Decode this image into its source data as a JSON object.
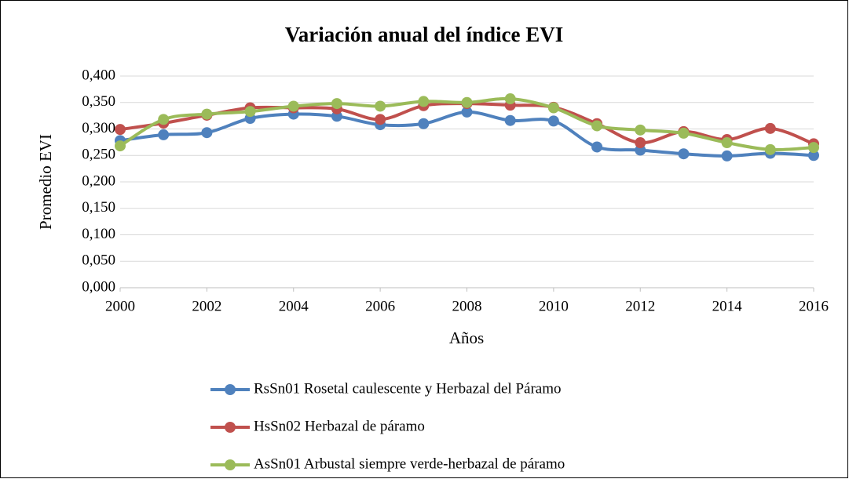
{
  "chart_data": {
    "type": "line",
    "title": "Variación anual del índice EVI",
    "x_label": "Años",
    "y_label": "Promedio EVI",
    "x": [
      2000,
      2001,
      2002,
      2003,
      2004,
      2005,
      2006,
      2007,
      2008,
      2009,
      2010,
      2011,
      2012,
      2013,
      2014,
      2015,
      2016
    ],
    "xlim": [
      2000,
      2016
    ],
    "xticks": [
      2000,
      2002,
      2004,
      2006,
      2008,
      2010,
      2012,
      2014,
      2016
    ],
    "ylim": [
      0,
      0.4
    ],
    "yticks": [
      {
        "value": 0,
        "label": "0,000"
      },
      {
        "value": 0.05,
        "label": "0,050"
      },
      {
        "value": 0.1,
        "label": "0,100"
      },
      {
        "value": 0.15,
        "label": "0,150"
      },
      {
        "value": 0.2,
        "label": "0,200"
      },
      {
        "value": 0.25,
        "label": "0,250"
      },
      {
        "value": 0.3,
        "label": "0,300"
      },
      {
        "value": 0.35,
        "label": "0,350"
      },
      {
        "value": 0.4,
        "label": "0,400"
      }
    ],
    "grid": true,
    "smooth": true,
    "legend": "bottom",
    "series": [
      {
        "name": "RsSn01 Rosetal caulescente y Herbazal del Páramo",
        "color": "#4f81bd",
        "values": [
          0.278,
          0.289,
          0.293,
          0.32,
          0.328,
          0.324,
          0.308,
          0.31,
          0.332,
          0.316,
          0.315,
          0.266,
          0.26,
          0.253,
          0.249,
          0.254,
          0.25
        ]
      },
      {
        "name": "HsSn02 Herbazal de páramo",
        "color": "#c0504d",
        "values": [
          0.299,
          0.311,
          0.326,
          0.34,
          0.34,
          0.338,
          0.318,
          0.344,
          0.348,
          0.345,
          0.341,
          0.31,
          0.274,
          0.295,
          0.28,
          0.301,
          0.272
        ]
      },
      {
        "name": "AsSn01 Arbustal siempre verde-herbazal de páramo",
        "color": "#9bbb59",
        "values": [
          0.268,
          0.318,
          0.328,
          0.333,
          0.343,
          0.348,
          0.343,
          0.352,
          0.35,
          0.357,
          0.34,
          0.306,
          0.298,
          0.292,
          0.274,
          0.261,
          0.265
        ]
      }
    ]
  }
}
